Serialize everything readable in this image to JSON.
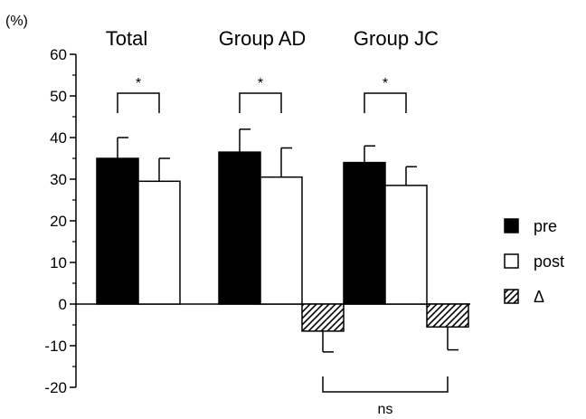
{
  "chart_data": {
    "type": "bar",
    "unit_label": "(%)",
    "ylim": [
      -20,
      60
    ],
    "yticks": [
      60,
      50,
      40,
      30,
      20,
      10,
      0,
      -10,
      -20
    ],
    "groups": [
      {
        "label": "Total",
        "series": [
          "pre",
          "post"
        ]
      },
      {
        "label": "Group AD",
        "series": [
          "pre",
          "post",
          "delta"
        ]
      },
      {
        "label": "Group JC",
        "series": [
          "pre",
          "post",
          "delta"
        ]
      }
    ],
    "series": [
      {
        "name": "pre",
        "legend": "pre",
        "fill": "#000000",
        "values": [
          35,
          36.5,
          34
        ],
        "errors": [
          5,
          5.5,
          4
        ]
      },
      {
        "name": "post",
        "legend": "post",
        "fill": "#ffffff",
        "values": [
          29.5,
          30.5,
          28.5
        ],
        "errors": [
          5.5,
          7,
          4.5
        ]
      },
      {
        "name": "delta",
        "legend": "Δ",
        "fill": "hatched",
        "values": [
          null,
          -6.5,
          -5.5
        ],
        "errors": [
          null,
          5,
          5.5
        ]
      }
    ],
    "significance": [
      {
        "group": 0,
        "label": "*"
      },
      {
        "group": 1,
        "label": "*"
      },
      {
        "group": 2,
        "label": "*"
      }
    ],
    "between_groups": {
      "label": "ns"
    },
    "grid": false,
    "legend_position": "right"
  }
}
